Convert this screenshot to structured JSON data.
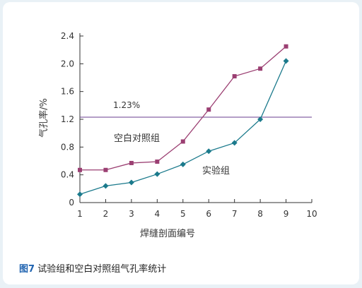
{
  "caption": {
    "figure_number": "图7",
    "text": "试验组和空白对照组气孔率统计"
  },
  "colors": {
    "control_series": "#9b3f72",
    "experimental_series": "#1b7a8c",
    "reference_line": "#6a3d8f",
    "axis": "#333333"
  },
  "chart_data": {
    "type": "line",
    "title": "",
    "xlabel": "焊缝剖面编号",
    "ylabel": "气孔率/%",
    "xlim": [
      1,
      10
    ],
    "ylim": [
      0,
      2.4
    ],
    "x_ticks": [
      "1",
      "2",
      "3",
      "4",
      "5",
      "6",
      "7",
      "8",
      "9",
      "10"
    ],
    "y_ticks": [
      "0",
      "0.4",
      "0.8",
      "1.2",
      "1.6",
      "2.0",
      "2.4"
    ],
    "reference_line": {
      "value": 1.23,
      "label": "1.23%"
    },
    "series": [
      {
        "name": "空白对照组",
        "marker": "square",
        "x": [
          1,
          2,
          3,
          4,
          5,
          6,
          7,
          8,
          9
        ],
        "values": [
          0.47,
          0.47,
          0.57,
          0.59,
          0.88,
          1.34,
          1.82,
          1.93,
          2.25
        ]
      },
      {
        "name": "实验组",
        "marker": "diamond",
        "x": [
          1,
          2,
          3,
          4,
          5,
          6,
          7,
          8,
          9
        ],
        "values": [
          0.12,
          0.24,
          0.29,
          0.41,
          0.55,
          0.74,
          0.86,
          1.2,
          2.04
        ]
      }
    ]
  }
}
